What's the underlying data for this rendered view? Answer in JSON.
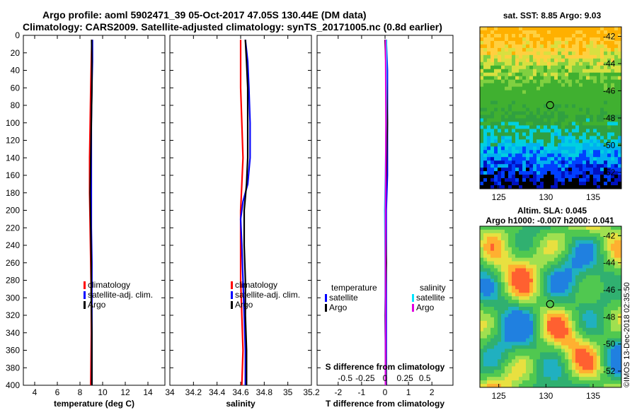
{
  "header": {
    "line1": "Argo profile: aoml 5902471_39 05-Oct-2017 47.05S 130.44E (DM data)",
    "line2": "Climatology: CARS2009. Satellite-adjusted climatology: synTS_20171005.nc (0.8d earlier)"
  },
  "maps": {
    "sst_title": "sat. SST: 8.85 Argo: 9.03",
    "sla_title_1": "Altim. SLA: 0.045",
    "sla_title_2": "Argo h1000: -0.007 h2000: 0.041"
  },
  "stamp": "©IMOS 13-Dec-2018 02:35:50",
  "colors": {
    "climatology": "#ff0000",
    "satellite": "#0000ff",
    "argo": "#000000",
    "sat_salinity": "#00e5ff",
    "argo_salinity": "#e000e0"
  },
  "chart_data": [
    {
      "type": "line",
      "id": "temperature",
      "xlabel": "temperature (deg C)",
      "ylabel": "",
      "xlim": [
        3,
        15.5
      ],
      "ylim": [
        400,
        0
      ],
      "xticks": [
        4,
        6,
        8,
        10,
        12,
        14
      ],
      "yticks": [
        0,
        20,
        40,
        60,
        80,
        100,
        120,
        140,
        160,
        180,
        200,
        220,
        240,
        260,
        280,
        300,
        320,
        340,
        360,
        380,
        400
      ],
      "legend": [
        "climatology",
        "satellite-adj. clim.",
        "Argo"
      ],
      "series": [
        {
          "name": "climatology",
          "color": "#ff0000",
          "depth": [
            5,
            30,
            60,
            100,
            140,
            180,
            220,
            260,
            300,
            340,
            400
          ],
          "values": [
            9.05,
            9.0,
            8.95,
            8.9,
            8.85,
            8.85,
            8.9,
            8.95,
            9.0,
            9.0,
            8.95
          ]
        },
        {
          "name": "satellite-adj. clim.",
          "color": "#0000ff",
          "depth": [
            5,
            30,
            60,
            100,
            140,
            180,
            220,
            260,
            300,
            340,
            400
          ],
          "values": [
            9.1,
            9.1,
            9.05,
            9.0,
            9.0,
            9.0,
            9.0,
            9.05,
            9.05,
            9.05,
            9.05
          ]
        },
        {
          "name": "Argo",
          "color": "#000000",
          "depth": [
            5,
            30,
            60,
            100,
            140,
            180,
            220,
            260,
            300,
            340,
            400
          ],
          "values": [
            9.03,
            9.05,
            9.05,
            9.0,
            8.95,
            8.9,
            8.95,
            9.0,
            9.0,
            9.05,
            9.05
          ]
        }
      ]
    },
    {
      "type": "line",
      "id": "salinity",
      "xlabel": "salinity",
      "ylabel": "",
      "xlim": [
        34,
        35.2
      ],
      "xticks": [
        34,
        34.2,
        34.4,
        34.6,
        34.8,
        35,
        35.2
      ],
      "legend": [
        "climatology",
        "satellite-adj. clim.",
        "Argo"
      ],
      "series": [
        {
          "name": "climatology",
          "color": "#ff0000",
          "depth": [
            5,
            30,
            60,
            100,
            140,
            170,
            200,
            240,
            280,
            320,
            360,
            400
          ],
          "values": [
            34.6,
            34.6,
            34.6,
            34.61,
            34.62,
            34.61,
            34.6,
            34.6,
            34.6,
            34.61,
            34.62,
            34.61
          ]
        },
        {
          "name": "satellite-adj. clim.",
          "color": "#0000ff",
          "depth": [
            5,
            30,
            60,
            100,
            140,
            170,
            190,
            210,
            240,
            280,
            320,
            360,
            400
          ],
          "values": [
            34.64,
            34.66,
            34.67,
            34.68,
            34.68,
            34.66,
            34.62,
            34.6,
            34.61,
            34.62,
            34.63,
            34.64,
            34.64
          ]
        },
        {
          "name": "Argo",
          "color": "#000000",
          "depth": [
            5,
            30,
            60,
            100,
            140,
            170,
            200,
            240,
            280,
            320,
            360,
            400
          ],
          "values": [
            34.64,
            34.65,
            34.66,
            34.66,
            34.66,
            34.65,
            34.63,
            34.63,
            34.64,
            34.64,
            34.65,
            34.65
          ]
        }
      ]
    },
    {
      "type": "line",
      "id": "difference",
      "xlabel": "T difference from climatology",
      "xlabel_top": "S difference from climatology",
      "xlim": [
        -2.9,
        2.9
      ],
      "xticks_bottom": [
        -2,
        -1,
        0,
        1,
        2
      ],
      "xticks_top": [
        "-0.5",
        "-0.25",
        "0",
        "0.25",
        "0.5"
      ],
      "legend_titles": [
        "temperature",
        "salinity"
      ],
      "legend": [
        "satellite",
        "Argo",
        "satellite",
        "Argo"
      ],
      "series": [
        {
          "name": "temperature satellite",
          "color": "#0000ff",
          "depth": [
            5,
            40,
            100,
            160,
            200,
            260,
            320,
            400
          ],
          "values": [
            0.05,
            0.1,
            0.1,
            0.1,
            0.05,
            0.05,
            0.05,
            0.05
          ]
        },
        {
          "name": "temperature Argo",
          "color": "#000000",
          "depth": [
            5,
            40,
            100,
            160,
            200,
            260,
            320,
            400
          ],
          "values": [
            0.0,
            0.05,
            0.1,
            0.05,
            0.0,
            0.05,
            0.0,
            0.05
          ]
        },
        {
          "name": "salinity satellite",
          "color": "#00e5ff",
          "depth": [
            5,
            40,
            100,
            160,
            200,
            260,
            320,
            400
          ],
          "values": [
            0.06,
            0.06,
            0.05,
            0.02,
            -0.01,
            0.01,
            0.01,
            0.02
          ]
        },
        {
          "name": "salinity Argo",
          "color": "#e000e0",
          "depth": [
            5,
            40,
            100,
            160,
            200,
            260,
            320,
            400
          ],
          "values": [
            0.02,
            0.03,
            0.04,
            0.03,
            0.02,
            0.02,
            0.02,
            0.02
          ]
        }
      ]
    },
    {
      "type": "heatmap",
      "id": "sst_map",
      "title": "sat. SST: 8.85 Argo: 9.03",
      "xlim": [
        123,
        138
      ],
      "ylim": [
        -53.2,
        -41.3
      ],
      "xticks": [
        125,
        130,
        135
      ],
      "yticks": [
        -42,
        -44,
        -46,
        -48,
        -50,
        -52
      ],
      "marker": {
        "lon": 130.44,
        "lat": -47.05
      }
    },
    {
      "type": "heatmap",
      "id": "sla_map",
      "title": "Altim. SLA: 0.045",
      "subtitle": "Argo h1000: -0.007 h2000: 0.041",
      "xlim": [
        123,
        138
      ],
      "ylim": [
        -53.2,
        -41.3
      ],
      "xticks": [
        125,
        130,
        135
      ],
      "yticks": [
        -42,
        -44,
        -46,
        -48,
        -50,
        -52
      ],
      "marker": {
        "lon": 130.44,
        "lat": -47.05
      }
    }
  ]
}
